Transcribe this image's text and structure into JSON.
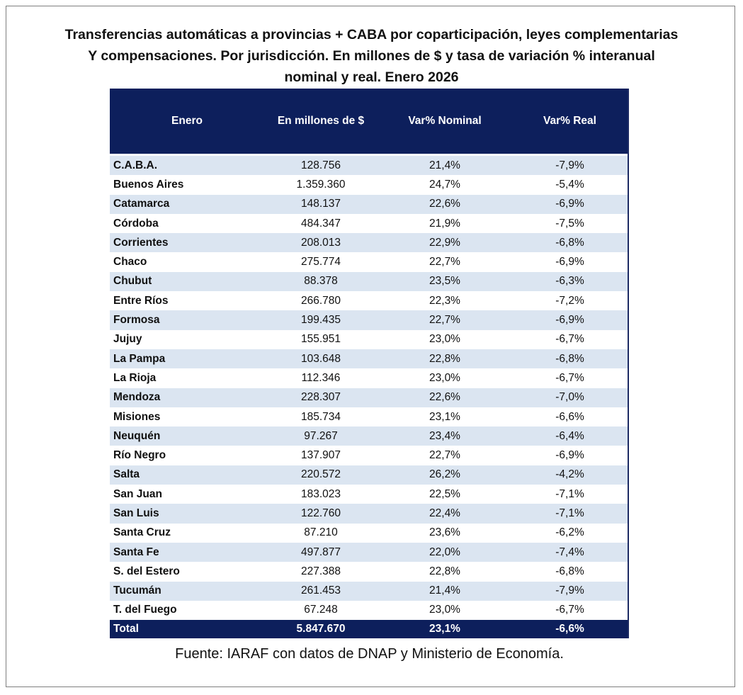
{
  "title": {
    "line1": "Transferencias automáticas  a provincias  + CABA por coparticipación,  leyes complementarias",
    "line2": "Y compensaciones.  Por jurisdicción.  En millones de $ y tasa de variación % interanual",
    "line3": "nominal y real.  Enero 2026"
  },
  "table": {
    "headers": [
      "Enero",
      "En millones de $",
      "Var% Nominal",
      "Var% Real"
    ],
    "rows": [
      {
        "name": "C.A.B.A.",
        "amount": "128.756",
        "nominal": "21,4%",
        "real": "-7,9%"
      },
      {
        "name": "Buenos Aires",
        "amount": "1.359.360",
        "nominal": "24,7%",
        "real": "-5,4%"
      },
      {
        "name": "Catamarca",
        "amount": "148.137",
        "nominal": "22,6%",
        "real": "-6,9%"
      },
      {
        "name": "Córdoba",
        "amount": "484.347",
        "nominal": "21,9%",
        "real": "-7,5%"
      },
      {
        "name": "Corrientes",
        "amount": "208.013",
        "nominal": "22,9%",
        "real": "-6,8%"
      },
      {
        "name": "Chaco",
        "amount": "275.774",
        "nominal": "22,7%",
        "real": "-6,9%"
      },
      {
        "name": "Chubut",
        "amount": "88.378",
        "nominal": "23,5%",
        "real": "-6,3%"
      },
      {
        "name": "Entre Ríos",
        "amount": "266.780",
        "nominal": "22,3%",
        "real": "-7,2%"
      },
      {
        "name": "Formosa",
        "amount": "199.435",
        "nominal": "22,7%",
        "real": "-6,9%"
      },
      {
        "name": "Jujuy",
        "amount": "155.951",
        "nominal": "23,0%",
        "real": "-6,7%"
      },
      {
        "name": "La Pampa",
        "amount": "103.648",
        "nominal": "22,8%",
        "real": "-6,8%"
      },
      {
        "name": "La Rioja",
        "amount": "112.346",
        "nominal": "23,0%",
        "real": "-6,7%"
      },
      {
        "name": "Mendoza",
        "amount": "228.307",
        "nominal": "22,6%",
        "real": "-7,0%"
      },
      {
        "name": "Misiones",
        "amount": "185.734",
        "nominal": "23,1%",
        "real": "-6,6%"
      },
      {
        "name": "Neuquén",
        "amount": "97.267",
        "nominal": "23,4%",
        "real": "-6,4%"
      },
      {
        "name": "Río Negro",
        "amount": "137.907",
        "nominal": "22,7%",
        "real": "-6,9%"
      },
      {
        "name": "Salta",
        "amount": "220.572",
        "nominal": "26,2%",
        "real": "-4,2%"
      },
      {
        "name": "San Juan",
        "amount": "183.023",
        "nominal": "22,5%",
        "real": "-7,1%"
      },
      {
        "name": "San Luis",
        "amount": "122.760",
        "nominal": "22,4%",
        "real": "-7,1%"
      },
      {
        "name": "Santa Cruz",
        "amount": "87.210",
        "nominal": "23,6%",
        "real": "-6,2%"
      },
      {
        "name": "Santa Fe",
        "amount": "497.877",
        "nominal": "22,0%",
        "real": "-7,4%"
      },
      {
        "name": "S. del Estero",
        "amount": "227.388",
        "nominal": "22,8%",
        "real": "-6,8%"
      },
      {
        "name": "Tucumán",
        "amount": "261.453",
        "nominal": "21,4%",
        "real": "-7,9%"
      },
      {
        "name": "T. del Fuego",
        "amount": "67.248",
        "nominal": "23,0%",
        "real": "-6,7%"
      }
    ],
    "total": {
      "name": "Total",
      "amount": "5.847.670",
      "nominal": "23,1%",
      "real": "-6,6%"
    }
  },
  "source": "Fuente: IARAF con datos de DNAP y Ministerio de Economía.",
  "colors": {
    "header_bg": "#0d1f5c",
    "row_alt": "#dbe5f1"
  }
}
